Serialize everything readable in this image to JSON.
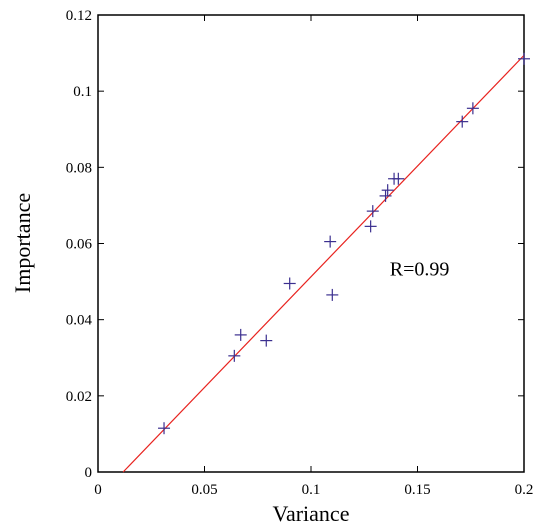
{
  "chart_data": {
    "type": "scatter",
    "title": "",
    "xlabel": "Variance",
    "ylabel": "Importance",
    "xlim": [
      0,
      0.2
    ],
    "ylim": [
      0,
      0.12
    ],
    "xticks": [
      0,
      0.05,
      0.1,
      0.15,
      0.2
    ],
    "yticks": [
      0,
      0.02,
      0.04,
      0.06,
      0.08,
      0.1,
      0.12
    ],
    "xtick_labels": [
      "0",
      "0.05",
      "0.1",
      "0.15",
      "0.2"
    ],
    "ytick_labels": [
      "0",
      "0.02",
      "0.04",
      "0.06",
      "0.08",
      "0.1",
      "0.12"
    ],
    "grid": false,
    "marker": "+",
    "marker_color": "#3b2f8f",
    "fit_line_color": "#e8231f",
    "series": [
      {
        "points": [
          {
            "x": 0.031,
            "y": 0.0115
          },
          {
            "x": 0.064,
            "y": 0.0305
          },
          {
            "x": 0.067,
            "y": 0.036
          },
          {
            "x": 0.079,
            "y": 0.0345
          },
          {
            "x": 0.09,
            "y": 0.0495
          },
          {
            "x": 0.109,
            "y": 0.0605
          },
          {
            "x": 0.11,
            "y": 0.0465
          },
          {
            "x": 0.128,
            "y": 0.0645
          },
          {
            "x": 0.129,
            "y": 0.0685
          },
          {
            "x": 0.135,
            "y": 0.0725
          },
          {
            "x": 0.136,
            "y": 0.074
          },
          {
            "x": 0.139,
            "y": 0.077
          },
          {
            "x": 0.141,
            "y": 0.077
          },
          {
            "x": 0.171,
            "y": 0.092
          },
          {
            "x": 0.176,
            "y": 0.0955
          },
          {
            "x": 0.2,
            "y": 0.1085
          }
        ]
      }
    ],
    "fit_line": {
      "x": [
        0.0118,
        0.2
      ],
      "y": [
        0,
        0.1094
      ]
    },
    "annotations": [
      {
        "text": "R=0.99",
        "x": 0.137,
        "y": 0.0535
      }
    ]
  }
}
